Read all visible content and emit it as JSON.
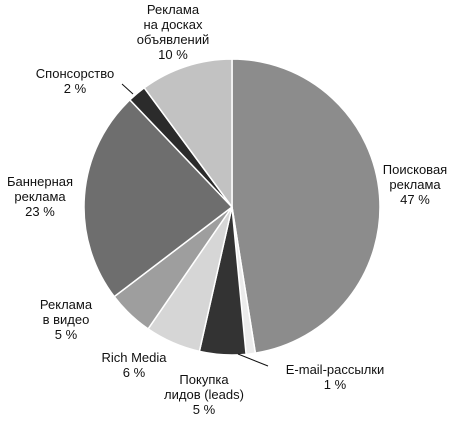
{
  "chart_data": {
    "type": "pie",
    "title": "",
    "categories": [
      "Поисковая реклама",
      "E-mail-рассылки",
      "Покупка лидов (leads)",
      "Rich Media",
      "Реклама в видео",
      "Баннерная реклама",
      "Спонсорство",
      "Реклама на досках объявлений"
    ],
    "values": [
      47,
      1,
      5,
      6,
      5,
      23,
      2,
      10
    ],
    "value_labels": [
      "47 %",
      "1 %",
      "5 %",
      "6 %",
      "5 %",
      "23 %",
      "2 %",
      "10 %"
    ],
    "colors": [
      "#8c8c8c",
      "#ececec",
      "#333333",
      "#d6d6d6",
      "#9e9e9e",
      "#6e6e6e",
      "#2b2b2b",
      "#c2c2c2"
    ],
    "start": "12 o'clock",
    "direction": "clockwise",
    "label_lines": [
      [
        "Поисковая",
        "реклама",
        "47 %"
      ],
      [
        "E-mail-рассылки",
        "1 %"
      ],
      [
        "Покупка",
        "лидов (leads)",
        "5 %"
      ],
      [
        "Rich Media",
        "6 %"
      ],
      [
        "Реклама",
        "в видео",
        "5 %"
      ],
      [
        "Баннерная",
        "реклама",
        "23 %"
      ],
      [
        "Спонсорство",
        "2 %"
      ],
      [
        "Реклама",
        "на досках",
        "объявлений",
        "10 %"
      ]
    ]
  }
}
